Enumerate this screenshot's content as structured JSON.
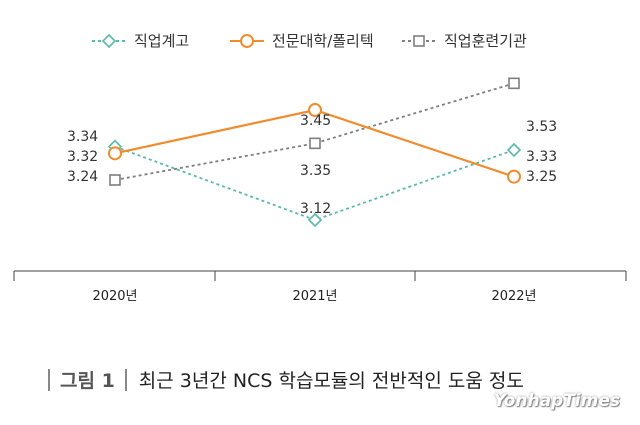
{
  "chart_data": {
    "type": "line",
    "categories": [
      "2020년",
      "2021년",
      "2022년"
    ],
    "series": [
      {
        "name": "직업계고",
        "values": [
          3.34,
          3.12,
          3.33
        ],
        "color": "#5bb8ad",
        "style": "dashed",
        "marker": "diamond"
      },
      {
        "name": "전문대학/폴리텍",
        "values": [
          3.32,
          3.45,
          3.25
        ],
        "color": "#f08c2e",
        "style": "solid",
        "marker": "circle"
      },
      {
        "name": "직업훈련기관",
        "values": [
          3.24,
          3.35,
          3.53
        ],
        "color": "#7f7f7f",
        "style": "dashed",
        "marker": "square"
      }
    ],
    "value_labels": [
      [
        "3.34",
        "3.12",
        "3.33"
      ],
      [
        "3.32",
        "3.45",
        "3.25"
      ],
      [
        "3.24",
        "3.35",
        "3.53"
      ]
    ],
    "ylim": [
      3.0,
      3.6
    ],
    "legend": "top",
    "grid": false
  },
  "caption": {
    "figure_label": "그림 1",
    "title": "최근 3년간 NCS 학습모듈의 전반적인 도움 정도"
  },
  "watermark": "YonhapTimes"
}
